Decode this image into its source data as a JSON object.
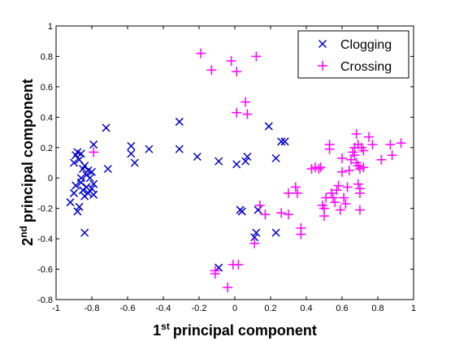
{
  "chart_data": {
    "type": "scatter",
    "xlabel": {
      "sup": "st",
      "text": "principal component",
      "prefix": "1"
    },
    "ylabel": {
      "sup": "nd",
      "text": "principal component",
      "prefix": "2"
    },
    "xlim": [
      -1,
      1
    ],
    "ylim": [
      -0.8,
      1
    ],
    "x_ticks": [
      -1,
      -0.8,
      -0.6,
      -0.4,
      -0.2,
      0,
      0.2,
      0.4,
      0.6,
      0.8,
      1
    ],
    "x_tick_labels": [
      "-1",
      "-0.8",
      "-0.6",
      "-0.4",
      "-0.2",
      "0",
      "0.2",
      "0.4",
      "0.6",
      "0.8",
      "1"
    ],
    "y_ticks": [
      -0.8,
      -0.6,
      -0.4,
      -0.2,
      0,
      0.2,
      0.4,
      0.6,
      0.8,
      1
    ],
    "y_tick_labels": [
      "-0.8",
      "-0.6",
      "-0.4",
      "-0.2",
      "0",
      "0.2",
      "0.4",
      "0.6",
      "0.8",
      "1"
    ],
    "grid": false,
    "legend_position": "top-right",
    "series": [
      {
        "name": "Clogging",
        "marker": "x",
        "color": "#0000cc",
        "points": [
          [
            -0.92,
            -0.16
          ],
          [
            -0.9,
            -0.1
          ],
          [
            -0.89,
            -0.05
          ],
          [
            -0.9,
            0.1
          ],
          [
            -0.89,
            0.15
          ],
          [
            -0.88,
            0.17
          ],
          [
            -0.87,
            0.12
          ],
          [
            -0.86,
            0.16
          ],
          [
            -0.88,
            -0.22
          ],
          [
            -0.87,
            -0.19
          ],
          [
            -0.86,
            -0.03
          ],
          [
            -0.86,
            0.0
          ],
          [
            -0.85,
            0.06
          ],
          [
            -0.85,
            -0.08
          ],
          [
            -0.84,
            0.08
          ],
          [
            -0.84,
            -0.12
          ],
          [
            -0.83,
            0.02
          ],
          [
            -0.83,
            -0.06
          ],
          [
            -0.82,
            0.05
          ],
          [
            -0.82,
            -0.1
          ],
          [
            -0.81,
            0.0
          ],
          [
            -0.8,
            0.04
          ],
          [
            -0.8,
            -0.07
          ],
          [
            -0.79,
            -0.04
          ],
          [
            -0.79,
            -0.11
          ],
          [
            -0.79,
            0.22
          ],
          [
            -0.84,
            -0.36
          ],
          [
            -0.72,
            0.33
          ],
          [
            -0.71,
            0.06
          ],
          [
            -0.58,
            0.21
          ],
          [
            -0.58,
            0.16
          ],
          [
            -0.56,
            0.1
          ],
          [
            -0.48,
            0.19
          ],
          [
            -0.31,
            0.37
          ],
          [
            -0.31,
            0.19
          ],
          [
            -0.21,
            0.14
          ],
          [
            -0.09,
            0.11
          ],
          [
            -0.09,
            -0.59
          ],
          [
            0.01,
            0.09
          ],
          [
            0.03,
            -0.21
          ],
          [
            0.04,
            -0.22
          ],
          [
            0.06,
            0.11
          ],
          [
            0.07,
            0.14
          ],
          [
            0.11,
            -0.39
          ],
          [
            0.12,
            -0.36
          ],
          [
            0.13,
            -0.21
          ],
          [
            0.19,
            0.34
          ],
          [
            0.23,
            0.13
          ],
          [
            0.23,
            -0.36
          ],
          [
            0.26,
            0.24
          ],
          [
            0.28,
            0.24
          ]
        ]
      },
      {
        "name": "Crossing",
        "marker": "+",
        "color": "#ff00ff",
        "points": [
          [
            -0.19,
            0.82
          ],
          [
            -0.13,
            0.71
          ],
          [
            -0.02,
            0.77
          ],
          [
            0.01,
            0.7
          ],
          [
            0.12,
            0.8
          ],
          [
            0.06,
            0.5
          ],
          [
            0.07,
            0.42
          ],
          [
            0.01,
            0.43
          ],
          [
            -0.79,
            0.17
          ],
          [
            -0.11,
            -0.61
          ],
          [
            -0.11,
            -0.63
          ],
          [
            -0.04,
            -0.72
          ],
          [
            -0.01,
            -0.57
          ],
          [
            0.02,
            -0.57
          ],
          [
            0.11,
            -0.43
          ],
          [
            0.14,
            -0.18
          ],
          [
            0.17,
            -0.24
          ],
          [
            0.26,
            -0.23
          ],
          [
            0.3,
            -0.1
          ],
          [
            0.3,
            -0.24
          ],
          [
            0.34,
            -0.06
          ],
          [
            0.35,
            -0.1
          ],
          [
            0.37,
            -0.33
          ],
          [
            0.37,
            -0.37
          ],
          [
            0.43,
            0.06
          ],
          [
            0.45,
            0.07
          ],
          [
            0.47,
            0.06
          ],
          [
            0.48,
            0.07
          ],
          [
            0.49,
            -0.18
          ],
          [
            0.5,
            -0.25
          ],
          [
            0.5,
            -0.2
          ],
          [
            0.51,
            -0.13
          ],
          [
            0.53,
            0.19
          ],
          [
            0.53,
            0.22
          ],
          [
            0.54,
            -0.1
          ],
          [
            0.55,
            -0.13
          ],
          [
            0.56,
            -0.16
          ],
          [
            0.57,
            -0.08
          ],
          [
            0.58,
            -0.05
          ],
          [
            0.59,
            -0.21
          ],
          [
            0.6,
            0.04
          ],
          [
            0.6,
            0.13
          ],
          [
            0.61,
            -0.13
          ],
          [
            0.62,
            -0.17
          ],
          [
            0.63,
            -0.06
          ],
          [
            0.64,
            0.05
          ],
          [
            0.65,
            0.12
          ],
          [
            0.66,
            0.17
          ],
          [
            0.67,
            0.15
          ],
          [
            0.67,
            0.2
          ],
          [
            0.68,
            0.1
          ],
          [
            0.68,
            0.29
          ],
          [
            0.69,
            0.22
          ],
          [
            0.69,
            0.08
          ],
          [
            0.69,
            -0.04
          ],
          [
            0.7,
            -0.07
          ],
          [
            0.7,
            -0.1
          ],
          [
            0.7,
            -0.21
          ],
          [
            0.7,
            0.06
          ],
          [
            0.71,
            0.2
          ],
          [
            0.72,
            0.07
          ],
          [
            0.72,
            0.18
          ],
          [
            0.75,
            0.27
          ],
          [
            0.77,
            0.22
          ],
          [
            0.82,
            0.12
          ],
          [
            0.87,
            0.22
          ],
          [
            0.88,
            0.15
          ],
          [
            0.93,
            0.23
          ]
        ]
      }
    ]
  }
}
